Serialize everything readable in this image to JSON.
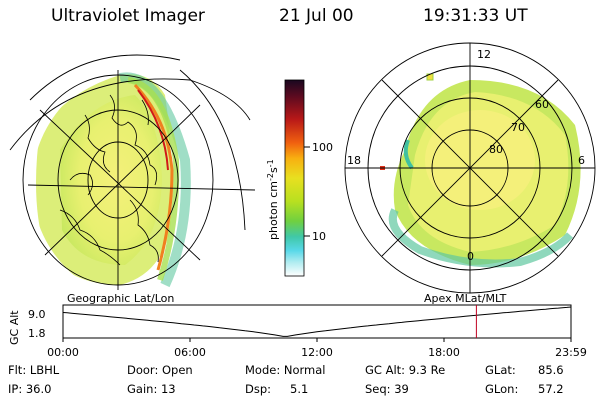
{
  "header": {
    "title": "Ultraviolet Imager",
    "date": "21 Jul 00",
    "time": "19:31:33 UT"
  },
  "colorbar": {
    "unit_label": "photon cm",
    "unit_exp1": "-2",
    "unit_mid": "s",
    "unit_exp2": "-1",
    "tick_100": "100",
    "tick_10": "10",
    "colors": [
      "#1a0820",
      "#5a0a20",
      "#b81818",
      "#f06010",
      "#f8b010",
      "#e8e020",
      "#b8e020",
      "#70d040",
      "#40c8a8",
      "#58d8e8",
      "#b0ecf0",
      "#ffffff"
    ]
  },
  "left_map": {
    "label": "Geographic Lat/Lon"
  },
  "right_map": {
    "label": "Apex MLat/MLT",
    "mlt_12": "12",
    "mlt_18": "18",
    "mlt_6": "6",
    "mlt_0": "0",
    "lat_60": "60",
    "lat_70": "70",
    "lat_80": "80"
  },
  "alt_plot": {
    "axis_title": "GC Alt",
    "y_top": "9.0",
    "y_bottom": "1.8",
    "x_ticks": [
      "00:00",
      "06:00",
      "12:00",
      "18:00",
      "23:59"
    ],
    "marker_time_hours": 19.53
  },
  "info": {
    "flt": "Flt: LBHL",
    "ip": "IP: 36.0",
    "door": "Door: Open",
    "gain": "Gain: 13",
    "mode": "Mode: Normal",
    "dsp_label": "Dsp:",
    "dsp_value": "5.1",
    "gc_alt": "GC Alt: 9.3 Re",
    "seq": "Seq: 39",
    "glat_label": "GLat:",
    "glat_value": "85.6",
    "glon_label": "GLon:",
    "glon_value": "57.2"
  }
}
